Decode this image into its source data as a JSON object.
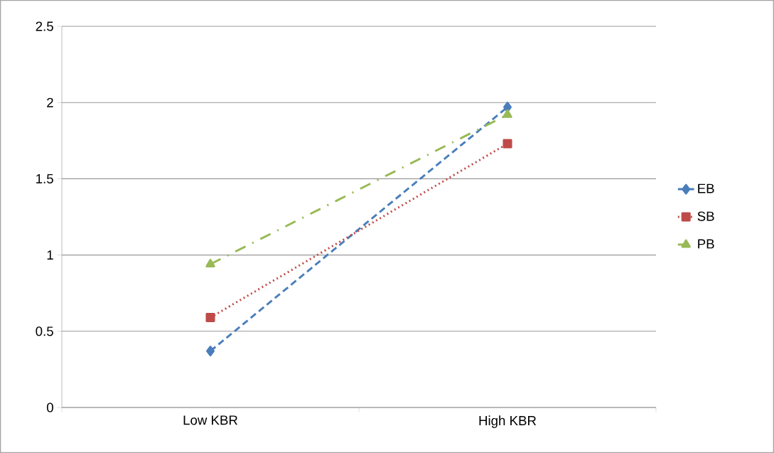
{
  "chart_data": {
    "type": "line",
    "categories": [
      "Low KBR",
      "High KBR"
    ],
    "series": [
      {
        "name": "EB",
        "color": "#4a7ebb",
        "values": [
          0.37,
          1.97
        ],
        "line_style": "dashed",
        "marker": "diamond"
      },
      {
        "name": "SB",
        "color": "#be4b48",
        "values": [
          0.59,
          1.73
        ],
        "line_style": "dotted",
        "marker": "square"
      },
      {
        "name": "PB",
        "color": "#98b954",
        "values": [
          0.94,
          1.92
        ],
        "line_style": "dashdot",
        "marker": "triangle"
      }
    ],
    "ylim": [
      0,
      2.5
    ],
    "yticks": [
      0,
      0.5,
      1,
      1.5,
      2,
      2.5
    ],
    "grid": "y",
    "legend": "right"
  }
}
